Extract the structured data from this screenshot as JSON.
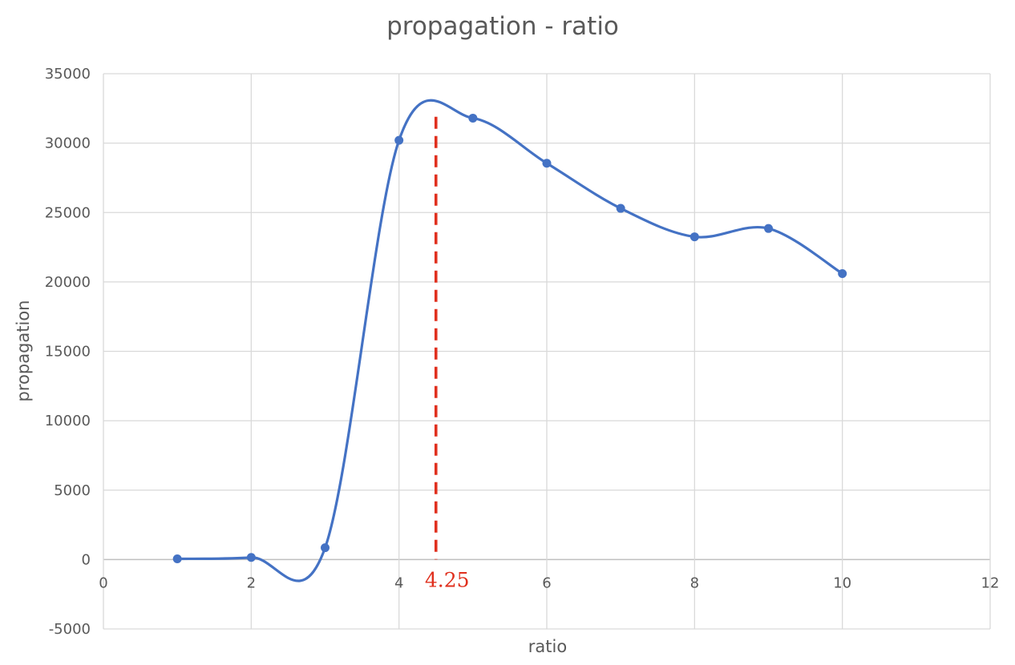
{
  "chart_data": {
    "type": "scatter",
    "title": "propagation - ratio",
    "xlabel": "ratio",
    "ylabel": "propagation",
    "xlim": [
      0,
      12
    ],
    "ylim": [
      -5000,
      35000
    ],
    "x_ticks": [
      "0",
      "2",
      "4",
      "6",
      "8",
      "10",
      "12"
    ],
    "y_ticks": [
      "35000",
      "30000",
      "25000",
      "20000",
      "15000",
      "10000",
      "5000",
      "0",
      "-5000"
    ],
    "grid": true,
    "smoothed": true,
    "series": [
      {
        "x": [
          1,
          2,
          3,
          4,
          5,
          6,
          7,
          8,
          9,
          10
        ],
        "values": [
          50,
          150,
          850,
          30200,
          31800,
          28550,
          25300,
          23250,
          23850,
          20600
        ],
        "color": "#4472c4"
      }
    ],
    "annotation": {
      "label": "4.25",
      "x": 4.5,
      "color": "#e0301e"
    }
  }
}
